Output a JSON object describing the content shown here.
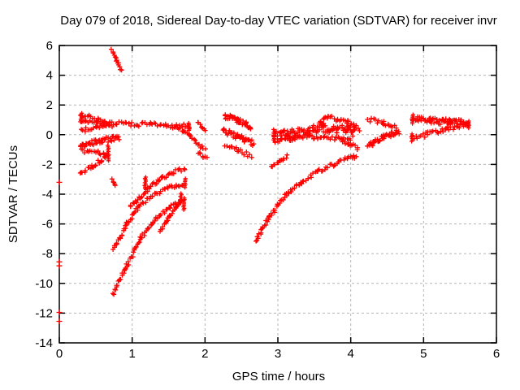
{
  "window": {
    "title": "Day 079 of 2018, Sidereal Day-to-day VTEC variation (SDTVAR) for receiver invr"
  },
  "colors": {
    "marker": "#ff0000",
    "border": "#000000",
    "grid": "#b5b5b5",
    "background": "#ffffff",
    "text": "#000000"
  },
  "chart_data": {
    "type": "scatter",
    "title": "Day 079 of 2018, Sidereal Day-to-day VTEC variation (SDTVAR) for receiver invr",
    "xlabel": "GPS time / hours",
    "ylabel": "SDTVAR / TECUs",
    "xlim": [
      0,
      6
    ],
    "ylim": [
      -14,
      6
    ],
    "x_ticks": [
      0,
      1,
      2,
      3,
      4,
      5,
      6
    ],
    "y_ticks": [
      6,
      4,
      2,
      0,
      -2,
      -4,
      -6,
      -8,
      -10,
      -12,
      -14
    ],
    "grid": true,
    "legend": "none",
    "marker": "plus",
    "marker_color": "#ff0000",
    "traces": [
      {
        "name": "steep-streak-0.8h",
        "th": 0.08,
        "pts": [
          [
            0.72,
            5.7
          ],
          [
            0.79,
            5.0
          ],
          [
            0.85,
            4.3
          ]
        ]
      },
      {
        "name": "fan-upper-arm",
        "th": 0.13,
        "pts": [
          [
            0.3,
            1.35
          ],
          [
            0.46,
            1.12
          ],
          [
            0.62,
            0.82
          ]
        ]
      },
      {
        "name": "fan-mid-arm",
        "th": 0.11,
        "pts": [
          [
            0.3,
            0.92
          ],
          [
            0.5,
            0.86
          ],
          [
            0.68,
            0.76
          ]
        ]
      },
      {
        "name": "fan-lower-arm",
        "th": 0.13,
        "pts": [
          [
            0.3,
            0.28
          ],
          [
            0.52,
            0.47
          ],
          [
            0.72,
            0.63
          ]
        ]
      },
      {
        "name": "main-band-1h",
        "th": 0.16,
        "pts": [
          [
            0.62,
            0.74
          ],
          [
            0.95,
            0.7
          ],
          [
            1.25,
            0.66
          ],
          [
            1.55,
            0.6
          ],
          [
            1.78,
            0.56
          ]
        ]
      },
      {
        "name": "band-hook-down",
        "th": 0.1,
        "pts": [
          [
            1.6,
            0.55
          ],
          [
            1.7,
            0.3
          ],
          [
            1.79,
            -0.05
          ],
          [
            1.87,
            -0.42
          ]
        ]
      },
      {
        "name": "low-band-0.5h",
        "th": 0.18,
        "pts": [
          [
            0.3,
            -0.68
          ],
          [
            0.55,
            -0.42
          ],
          [
            0.82,
            -0.2
          ]
        ]
      },
      {
        "name": "v-top-arm",
        "th": 0.12,
        "pts": [
          [
            0.3,
            -1.08
          ],
          [
            0.5,
            -1.2
          ],
          [
            0.67,
            -1.32
          ]
        ]
      },
      {
        "name": "v-rising-arm",
        "th": 0.13,
        "pts": [
          [
            0.28,
            -2.62
          ],
          [
            0.45,
            -2.12
          ],
          [
            0.57,
            -1.72
          ],
          [
            0.68,
            -1.35
          ]
        ]
      },
      {
        "name": "rising-trace-a",
        "th": 0.13,
        "pts": [
          [
            0.74,
            -7.8
          ],
          [
            0.93,
            -6.0
          ],
          [
            1.1,
            -4.75
          ],
          [
            1.28,
            -4.1
          ],
          [
            1.48,
            -3.6
          ],
          [
            1.71,
            -3.28
          ]
        ]
      },
      {
        "name": "rising-trace-b",
        "th": 0.13,
        "pts": [
          [
            0.74,
            -10.75
          ],
          [
            0.93,
            -8.75
          ],
          [
            1.12,
            -7.0
          ],
          [
            1.32,
            -5.6
          ],
          [
            1.52,
            -4.85
          ],
          [
            1.71,
            -4.5
          ]
        ]
      },
      {
        "name": "rising-trace-c",
        "th": 0.12,
        "pts": [
          [
            0.97,
            -4.85
          ],
          [
            1.12,
            -4.2
          ],
          [
            1.25,
            -3.45
          ],
          [
            1.42,
            -2.85
          ],
          [
            1.58,
            -2.5
          ],
          [
            1.73,
            -2.28
          ]
        ]
      },
      {
        "name": "rising-trace-d",
        "th": 0.12,
        "pts": [
          [
            1.39,
            -6.5
          ],
          [
            1.49,
            -5.65
          ],
          [
            1.59,
            -4.95
          ],
          [
            1.67,
            -4.28
          ]
        ]
      },
      {
        "name": "cluster-2h-upper",
        "th": 0.14,
        "pts": [
          [
            1.9,
            0.75
          ],
          [
            2.0,
            0.3
          ]
        ]
      },
      {
        "name": "cluster-2h-mid",
        "th": 0.12,
        "pts": [
          [
            1.88,
            -0.55
          ],
          [
            2.0,
            -1.0
          ]
        ]
      },
      {
        "name": "cluster-2h-lower",
        "th": 0.12,
        "pts": [
          [
            1.9,
            -1.2
          ],
          [
            2.02,
            -1.55
          ]
        ]
      },
      {
        "name": "streak-2.4h-upper",
        "th": 0.18,
        "pts": [
          [
            2.27,
            1.28
          ],
          [
            2.45,
            0.92
          ],
          [
            2.63,
            0.55
          ]
        ]
      },
      {
        "name": "streak-2.4h-mid",
        "th": 0.18,
        "pts": [
          [
            2.25,
            0.28
          ],
          [
            2.45,
            -0.12
          ],
          [
            2.66,
            -0.55
          ]
        ]
      },
      {
        "name": "streak-2.4h-lower",
        "th": 0.15,
        "pts": [
          [
            2.28,
            -0.75
          ],
          [
            2.45,
            -1.05
          ],
          [
            2.63,
            -1.4
          ]
        ]
      },
      {
        "name": "band-3-4h-main",
        "th": 0.28,
        "pts": [
          [
            2.95,
            -0.05
          ],
          [
            3.15,
            0.1
          ],
          [
            3.4,
            0.3
          ],
          [
            3.6,
            0.45
          ],
          [
            3.8,
            0.4
          ],
          [
            3.95,
            0.3
          ],
          [
            4.05,
            0.1
          ]
        ]
      },
      {
        "name": "band-3-4h-bump",
        "th": 0.15,
        "pts": [
          [
            3.52,
            0.5
          ],
          [
            3.62,
            0.9
          ],
          [
            3.7,
            1.2
          ],
          [
            3.82,
            1.0
          ],
          [
            3.95,
            0.9
          ],
          [
            4.05,
            0.6
          ],
          [
            4.12,
            0.35
          ]
        ]
      },
      {
        "name": "band-3-4h-low-left",
        "th": 0.13,
        "pts": [
          [
            2.97,
            -0.45
          ],
          [
            3.2,
            -0.25
          ],
          [
            3.4,
            -0.1
          ]
        ]
      },
      {
        "name": "band-3-4h-low",
        "th": 0.15,
        "pts": [
          [
            3.2,
            -0.2
          ],
          [
            3.5,
            -0.15
          ],
          [
            3.8,
            -0.25
          ],
          [
            4.0,
            -0.38
          ]
        ]
      },
      {
        "name": "band-3-4h-tail-down",
        "th": 0.13,
        "pts": [
          [
            3.85,
            -0.35
          ],
          [
            3.98,
            -0.6
          ],
          [
            4.1,
            -0.95
          ]
        ]
      },
      {
        "name": "big-arc-3-4h",
        "th": 0.13,
        "pts": [
          [
            2.7,
            -7.2
          ],
          [
            2.79,
            -6.3
          ],
          [
            2.88,
            -5.6
          ],
          [
            2.99,
            -4.8
          ],
          [
            3.12,
            -4.05
          ],
          [
            3.32,
            -3.2
          ],
          [
            3.55,
            -2.5
          ],
          [
            3.78,
            -1.95
          ],
          [
            3.95,
            -1.62
          ],
          [
            4.08,
            -1.42
          ]
        ]
      },
      {
        "name": "short-diag-3h",
        "th": 0.1,
        "pts": [
          [
            2.9,
            -2.15
          ],
          [
            3.02,
            -1.8
          ],
          [
            3.13,
            -1.45
          ]
        ]
      },
      {
        "name": "chevron-upper-4.4h",
        "th": 0.15,
        "pts": [
          [
            4.24,
            1.05
          ],
          [
            4.44,
            0.8
          ],
          [
            4.62,
            0.58
          ]
        ]
      },
      {
        "name": "chevron-lower-4.4h",
        "th": 0.17,
        "pts": [
          [
            4.23,
            -0.75
          ],
          [
            4.45,
            -0.18
          ],
          [
            4.66,
            0.18
          ]
        ]
      },
      {
        "name": "wedge-upper-5h",
        "th": 0.2,
        "pts": [
          [
            4.85,
            1.08
          ],
          [
            5.1,
            0.94
          ],
          [
            5.35,
            0.85
          ],
          [
            5.6,
            0.8
          ]
        ]
      },
      {
        "name": "wedge-lower-5h",
        "th": 0.16,
        "pts": [
          [
            4.84,
            -0.25
          ],
          [
            5.06,
            0.04
          ],
          [
            5.3,
            0.34
          ],
          [
            5.5,
            0.55
          ],
          [
            5.61,
            0.62
          ]
        ]
      },
      {
        "name": "isolated-cluster-0.75h",
        "th": 0.1,
        "pts": [
          [
            0.73,
            -3.05
          ],
          [
            0.77,
            -3.45
          ]
        ]
      }
    ],
    "vertical_tick_clusters": [
      [
        0.3,
        0.85,
        1.45
      ],
      [
        0.67,
        -0.72,
        -1.75
      ],
      [
        1.18,
        -2.85,
        -3.7
      ],
      [
        1.73,
        -2.95,
        -3.55
      ],
      [
        1.71,
        -4.25,
        -5.05
      ],
      [
        1.67,
        -3.95,
        -4.55
      ],
      [
        1.78,
        0.3,
        0.78
      ],
      [
        2.95,
        -0.45,
        0.35
      ],
      [
        4.85,
        0.75,
        1.35
      ],
      [
        4.84,
        -0.45,
        0.05
      ],
      [
        5.62,
        0.45,
        0.92
      ]
    ],
    "isolated_points": [
      [
        0.0,
        -3.2
      ],
      [
        0.0,
        -8.55
      ],
      [
        0.0,
        -8.82
      ],
      [
        0.0,
        -11.95
      ],
      [
        0.0,
        -12.55
      ]
    ]
  }
}
